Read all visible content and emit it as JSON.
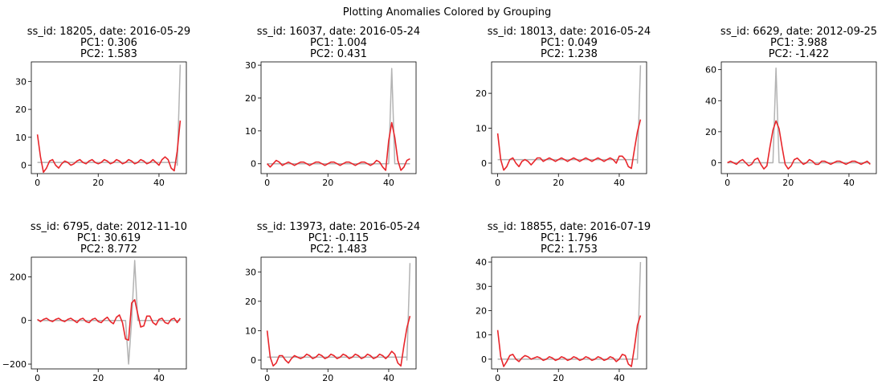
{
  "suptitle": "Plotting Anomalies Colored by Grouping",
  "colors": {
    "raw": "#b3b3b3",
    "smoothed": "#e8262b"
  },
  "chart_data": [
    {
      "type": "line",
      "title": [
        "ss_id: 18205, date: 2016-05-29",
        "PC1: 0.306",
        "PC2: 1.583"
      ],
      "xlim": [
        -2,
        49
      ],
      "ylim": [
        -3,
        37
      ],
      "xticks": [
        0,
        20,
        40
      ],
      "yticks": [
        0,
        10,
        20,
        30
      ],
      "series": [
        {
          "style": "raw",
          "x": [
            0,
            46,
            46,
            47
          ],
          "y": [
            1,
            1,
            0,
            36
          ]
        },
        {
          "style": "smoothed",
          "x": [
            0,
            1,
            2,
            3,
            4,
            5,
            6,
            7,
            8,
            9,
            10,
            11,
            12,
            13,
            14,
            15,
            16,
            17,
            18,
            19,
            20,
            21,
            22,
            23,
            24,
            25,
            26,
            27,
            28,
            29,
            30,
            31,
            32,
            33,
            34,
            35,
            36,
            37,
            38,
            39,
            40,
            41,
            42,
            43,
            44,
            45,
            46,
            47
          ],
          "y": [
            11,
            3,
            -2.5,
            -1,
            1.5,
            2,
            0,
            -1,
            0.5,
            1.5,
            1,
            0,
            0.5,
            1.5,
            2,
            1,
            0.5,
            1.5,
            2,
            1,
            0.5,
            1,
            2,
            1.5,
            0.5,
            1,
            2,
            1.5,
            0.5,
            1,
            2,
            1.5,
            0.5,
            1,
            2,
            1.5,
            0.5,
            1,
            2,
            1,
            0,
            2,
            3,
            2,
            -1,
            -2,
            5,
            16
          ]
        }
      ]
    },
    {
      "type": "line",
      "title": [
        "ss_id: 16037, date: 2016-05-24",
        "PC1: 1.004",
        "PC2: 0.431"
      ],
      "xlim": [
        -2,
        49
      ],
      "ylim": [
        -3,
        31
      ],
      "xticks": [
        0,
        20,
        40
      ],
      "yticks": [
        0,
        10,
        20,
        30
      ],
      "series": [
        {
          "style": "raw",
          "x": [
            0,
            40,
            41,
            42,
            47
          ],
          "y": [
            0,
            0,
            29,
            0,
            0
          ]
        },
        {
          "style": "smoothed",
          "x": [
            0,
            1,
            2,
            3,
            4,
            5,
            6,
            7,
            8,
            9,
            10,
            11,
            12,
            13,
            14,
            15,
            16,
            17,
            18,
            19,
            20,
            21,
            22,
            23,
            24,
            25,
            26,
            27,
            28,
            29,
            30,
            31,
            32,
            33,
            34,
            35,
            36,
            37,
            38,
            39,
            40,
            41,
            42,
            43,
            44,
            45,
            46,
            47
          ],
          "y": [
            0,
            -1,
            0,
            1,
            0.5,
            -0.5,
            0,
            0.5,
            0,
            -0.5,
            0,
            0.5,
            0.5,
            0,
            -0.5,
            0,
            0.5,
            0.5,
            0,
            -0.5,
            0,
            0.5,
            0.5,
            0,
            -0.5,
            0,
            0.5,
            0.5,
            0,
            -0.5,
            0,
            0.5,
            0.5,
            0,
            -0.5,
            0,
            1,
            0.5,
            -1,
            -2,
            7,
            12.5,
            8,
            1,
            -2,
            -1,
            1,
            1.5
          ]
        }
      ]
    },
    {
      "type": "line",
      "title": [
        "ss_id: 18013, date: 2016-05-24",
        "PC1: 0.049",
        "PC2: 1.238"
      ],
      "xlim": [
        -2,
        49
      ],
      "ylim": [
        -3,
        29
      ],
      "xticks": [
        0,
        20,
        40
      ],
      "yticks": [
        0,
        10,
        20
      ],
      "series": [
        {
          "style": "raw",
          "x": [
            0,
            46,
            46,
            47
          ],
          "y": [
            1,
            1,
            0,
            28
          ]
        },
        {
          "style": "smoothed",
          "x": [
            0,
            1,
            2,
            3,
            4,
            5,
            6,
            7,
            8,
            9,
            10,
            11,
            12,
            13,
            14,
            15,
            16,
            17,
            18,
            19,
            20,
            21,
            22,
            23,
            24,
            25,
            26,
            27,
            28,
            29,
            30,
            31,
            32,
            33,
            34,
            35,
            36,
            37,
            38,
            39,
            40,
            41,
            42,
            43,
            44,
            45,
            46,
            47
          ],
          "y": [
            8.5,
            1,
            -2,
            -1,
            1,
            1.5,
            0,
            -1,
            0.5,
            1,
            0.5,
            -0.5,
            0.5,
            1.5,
            1.5,
            0.5,
            1,
            1.5,
            1,
            0.5,
            1,
            1.5,
            1,
            0.5,
            1,
            1.5,
            1,
            0.5,
            1,
            1.5,
            1,
            0.5,
            1,
            1.5,
            1,
            0.5,
            1,
            1.5,
            1,
            0,
            2,
            2,
            1,
            -1,
            -1.5,
            4,
            9,
            12.5
          ]
        }
      ]
    },
    {
      "type": "line",
      "title": [
        "ss_id: 6629, date: 2012-09-25",
        "PC1: 3.988",
        "PC2: -1.422"
      ],
      "xlim": [
        -2,
        49
      ],
      "ylim": [
        -7,
        65
      ],
      "xticks": [
        0,
        20,
        40
      ],
      "yticks": [
        0,
        20,
        40,
        60
      ],
      "series": [
        {
          "style": "raw",
          "x": [
            0,
            15,
            16,
            17,
            47
          ],
          "y": [
            0,
            0,
            61,
            0,
            0
          ]
        },
        {
          "style": "smoothed",
          "x": [
            0,
            1,
            2,
            3,
            4,
            5,
            6,
            7,
            8,
            9,
            10,
            11,
            12,
            13,
            14,
            15,
            16,
            17,
            18,
            19,
            20,
            21,
            22,
            23,
            24,
            25,
            26,
            27,
            28,
            29,
            30,
            31,
            32,
            33,
            34,
            35,
            36,
            37,
            38,
            39,
            40,
            41,
            42,
            43,
            44,
            45,
            46,
            47
          ],
          "y": [
            0,
            1,
            0,
            -1,
            1,
            2,
            0,
            -2,
            -1,
            2,
            3,
            -1,
            -4,
            -2,
            10,
            21,
            27,
            22,
            10,
            -1,
            -4,
            -2,
            2,
            3,
            1,
            -1,
            0,
            2,
            1,
            -1,
            -1,
            1,
            1,
            0,
            -1,
            0,
            1,
            1,
            0,
            -1,
            0,
            1,
            1,
            0,
            -1,
            0,
            1,
            -1
          ]
        }
      ]
    },
    {
      "type": "line",
      "title": [
        "ss_id: 6795, date: 2012-11-10",
        "PC1: 30.619",
        "PC2: 8.772"
      ],
      "xlim": [
        -2,
        49
      ],
      "ylim": [
        -222,
        290
      ],
      "xticks": [
        0,
        20,
        40
      ],
      "yticks": [
        -200,
        0,
        200
      ],
      "series": [
        {
          "style": "raw",
          "x": [
            0,
            29,
            30,
            31,
            32,
            33,
            47
          ],
          "y": [
            0,
            0,
            -200,
            0,
            275,
            0,
            0
          ]
        },
        {
          "style": "smoothed",
          "x": [
            0,
            1,
            2,
            3,
            4,
            5,
            6,
            7,
            8,
            9,
            10,
            11,
            12,
            13,
            14,
            15,
            16,
            17,
            18,
            19,
            20,
            21,
            22,
            23,
            24,
            25,
            26,
            27,
            28,
            29,
            30,
            31,
            32,
            33,
            34,
            35,
            36,
            37,
            38,
            39,
            40,
            41,
            42,
            43,
            44,
            45,
            46,
            47
          ],
          "y": [
            5,
            -5,
            5,
            10,
            0,
            -5,
            5,
            10,
            0,
            -5,
            5,
            10,
            0,
            -10,
            5,
            10,
            -5,
            -10,
            5,
            10,
            -5,
            -10,
            5,
            15,
            -5,
            -15,
            15,
            25,
            -10,
            -85,
            -90,
            80,
            95,
            30,
            -30,
            -25,
            20,
            20,
            -10,
            -20,
            5,
            10,
            -10,
            -15,
            5,
            10,
            -10,
            10
          ]
        }
      ]
    },
    {
      "type": "line",
      "title": [
        "ss_id: 13973, date: 2016-05-24",
        "PC1: -0.115",
        "PC2: 1.483"
      ],
      "xlim": [
        -2,
        49
      ],
      "ylim": [
        -3,
        35
      ],
      "xticks": [
        0,
        20,
        40
      ],
      "yticks": [
        0,
        10,
        20,
        30
      ],
      "series": [
        {
          "style": "raw",
          "x": [
            0,
            46,
            46,
            47
          ],
          "y": [
            1,
            1,
            0,
            33
          ]
        },
        {
          "style": "smoothed",
          "x": [
            0,
            1,
            2,
            3,
            4,
            5,
            6,
            7,
            8,
            9,
            10,
            11,
            12,
            13,
            14,
            15,
            16,
            17,
            18,
            19,
            20,
            21,
            22,
            23,
            24,
            25,
            26,
            27,
            28,
            29,
            30,
            31,
            32,
            33,
            34,
            35,
            36,
            37,
            38,
            39,
            40,
            41,
            42,
            43,
            44,
            45,
            46,
            47
          ],
          "y": [
            10,
            1,
            -2,
            -1,
            1.5,
            1.5,
            0,
            -1,
            0.5,
            1.5,
            1,
            0.5,
            1,
            2,
            1.5,
            0.5,
            1,
            2,
            1.5,
            0.5,
            1,
            2,
            1.5,
            0.5,
            1,
            2,
            1.5,
            0.5,
            1,
            2,
            1.5,
            0.5,
            1,
            2,
            1.5,
            0.5,
            1,
            2,
            1.5,
            0.5,
            1.5,
            3,
            2,
            -1,
            -2,
            5,
            11,
            15
          ]
        }
      ]
    },
    {
      "type": "line",
      "title": [
        "ss_id: 18855, date: 2016-07-19",
        "PC1: 1.796",
        "PC2: 1.753"
      ],
      "xlim": [
        -2,
        49
      ],
      "ylim": [
        -4,
        42
      ],
      "xticks": [
        0,
        20,
        40
      ],
      "yticks": [
        0,
        10,
        20,
        30,
        40
      ],
      "series": [
        {
          "style": "raw",
          "x": [
            0,
            46,
            46,
            47
          ],
          "y": [
            0,
            0,
            0,
            40
          ]
        },
        {
          "style": "smoothed",
          "x": [
            0,
            1,
            2,
            3,
            4,
            5,
            6,
            7,
            8,
            9,
            10,
            11,
            12,
            13,
            14,
            15,
            16,
            17,
            18,
            19,
            20,
            21,
            22,
            23,
            24,
            25,
            26,
            27,
            28,
            29,
            30,
            31,
            32,
            33,
            34,
            35,
            36,
            37,
            38,
            39,
            40,
            41,
            42,
            43,
            44,
            45,
            46,
            47
          ],
          "y": [
            12,
            1,
            -3,
            -1,
            1.5,
            2,
            0,
            -1,
            0.5,
            1.5,
            1,
            0,
            0.5,
            1,
            0.5,
            -0.5,
            0,
            1,
            0.5,
            -0.5,
            0,
            1,
            0.5,
            -0.5,
            0,
            1,
            0.5,
            -0.5,
            0,
            1,
            0.5,
            -0.5,
            0,
            1,
            0.5,
            -0.5,
            0,
            1,
            0.5,
            -1,
            0,
            2,
            1.5,
            -2,
            -3,
            5,
            14,
            18
          ]
        }
      ]
    }
  ]
}
